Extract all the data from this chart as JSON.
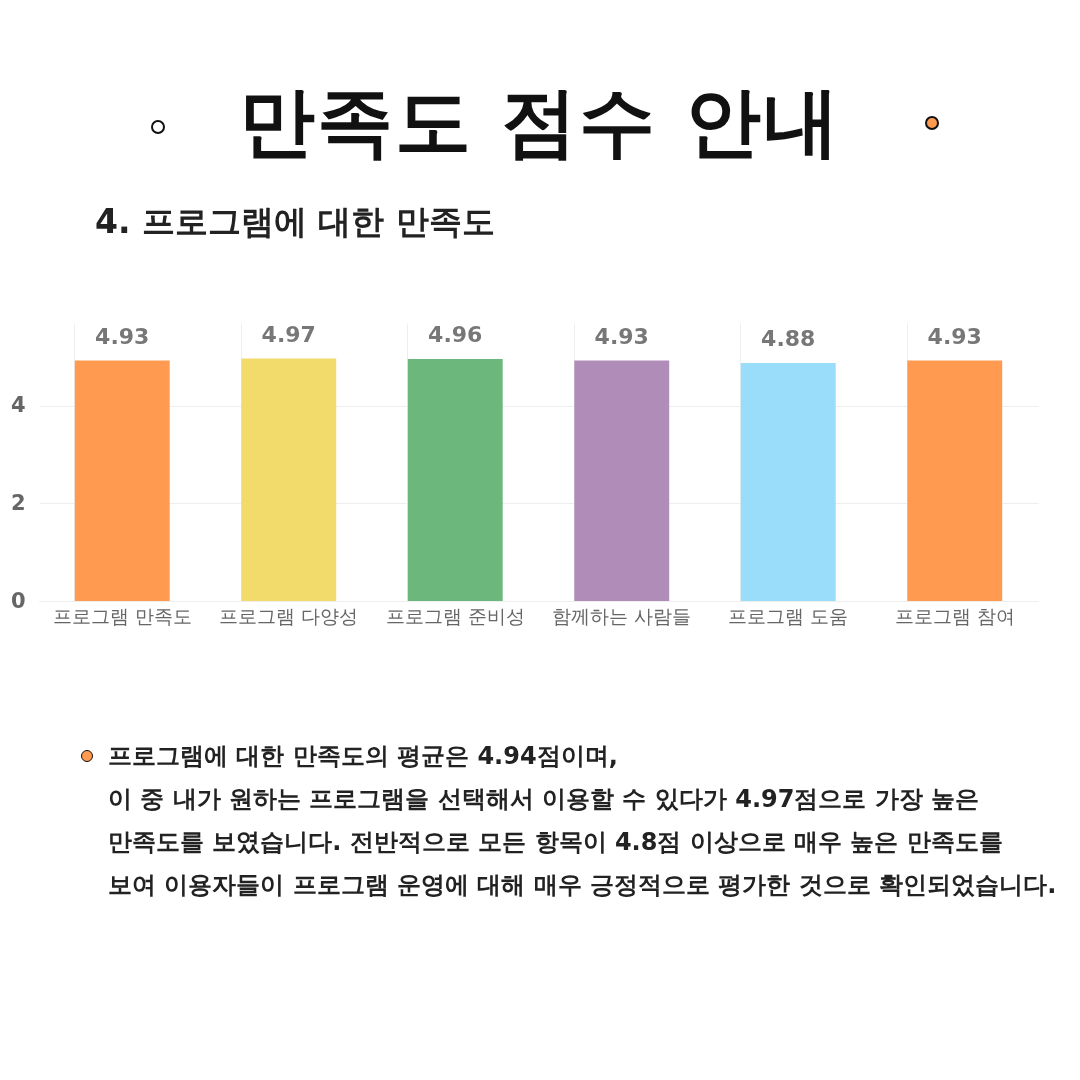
{
  "chart_data": {
    "type": "bar",
    "title": "만족도 점수 안내",
    "subtitle": "4. 프로그램에 대한 만족도",
    "categories": [
      "프로그램 만족도",
      "프로그램 다양성",
      "프로그램 준비성",
      "함께하는 사람들",
      "프로그램 도움",
      "프로그램 참여"
    ],
    "values": [
      4.93,
      4.97,
      4.96,
      4.93,
      4.88,
      4.93
    ],
    "colors": [
      "#ff9a50",
      "#f2db6b",
      "#6cb87c",
      "#b08cb8",
      "#99ddfa",
      "#ff9a50"
    ],
    "ylim": [
      0,
      5.7
    ],
    "yticks": [
      0,
      2,
      4
    ],
    "grid": true,
    "data_labels": true,
    "annotations": [
      "프로그램에 대한 만족도의 평균은 4.94점이며,",
      "이 중 내가 원하는 프로그램을 선택해서 이용할 수 있다가 4.97점으로 가장 높은",
      "만족도를 보였습니다.  전반적으로 모든 항목이 4.8점 이상으로 매우 높은 만족도를",
      "보여 이용자들이 프로그램 운영에 대해 매우 긍정적으로 평가한 것으로 확인되었습니다."
    ]
  }
}
